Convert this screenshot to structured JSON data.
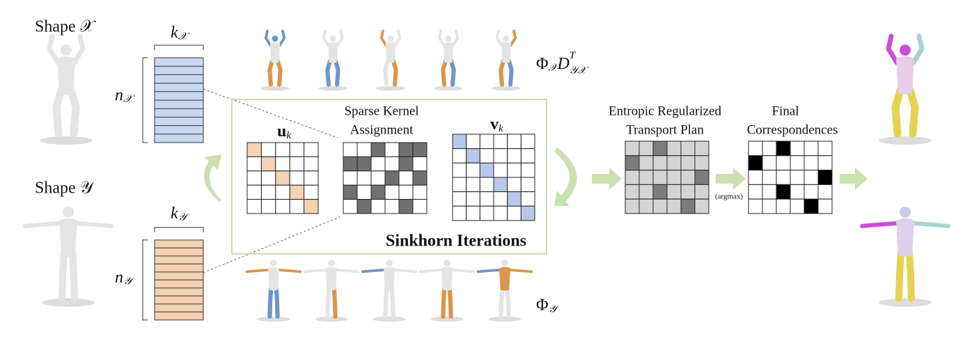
{
  "shape_x": {
    "label": "Shape 𝒳",
    "k": "k",
    "k_sub": "𝒳",
    "n": "n",
    "n_sub": "𝒳"
  },
  "shape_y": {
    "label": "Shape 𝒴",
    "k": "k",
    "k_sub": "𝒴",
    "n": "n",
    "n_sub": "𝒴"
  },
  "phi_x": {
    "base": "Φ",
    "base_sub": "𝒳",
    "mid": "D",
    "sup": "T",
    "sub": "𝒴𝒳"
  },
  "phi_y": {
    "base": "Φ",
    "base_sub": "𝒴"
  },
  "sinkhorn": {
    "title": "Sinkhorn Iterations",
    "u": "u",
    "u_sub": "k",
    "v": "v",
    "v_sub": "k",
    "kernel": [
      "Sparse Kernel",
      "Assignment"
    ]
  },
  "transport": [
    "Entropic Regularized",
    "Transport Plan"
  ],
  "argmax": "(argmax)",
  "final": [
    "Final",
    "Correspondences"
  ]
}
